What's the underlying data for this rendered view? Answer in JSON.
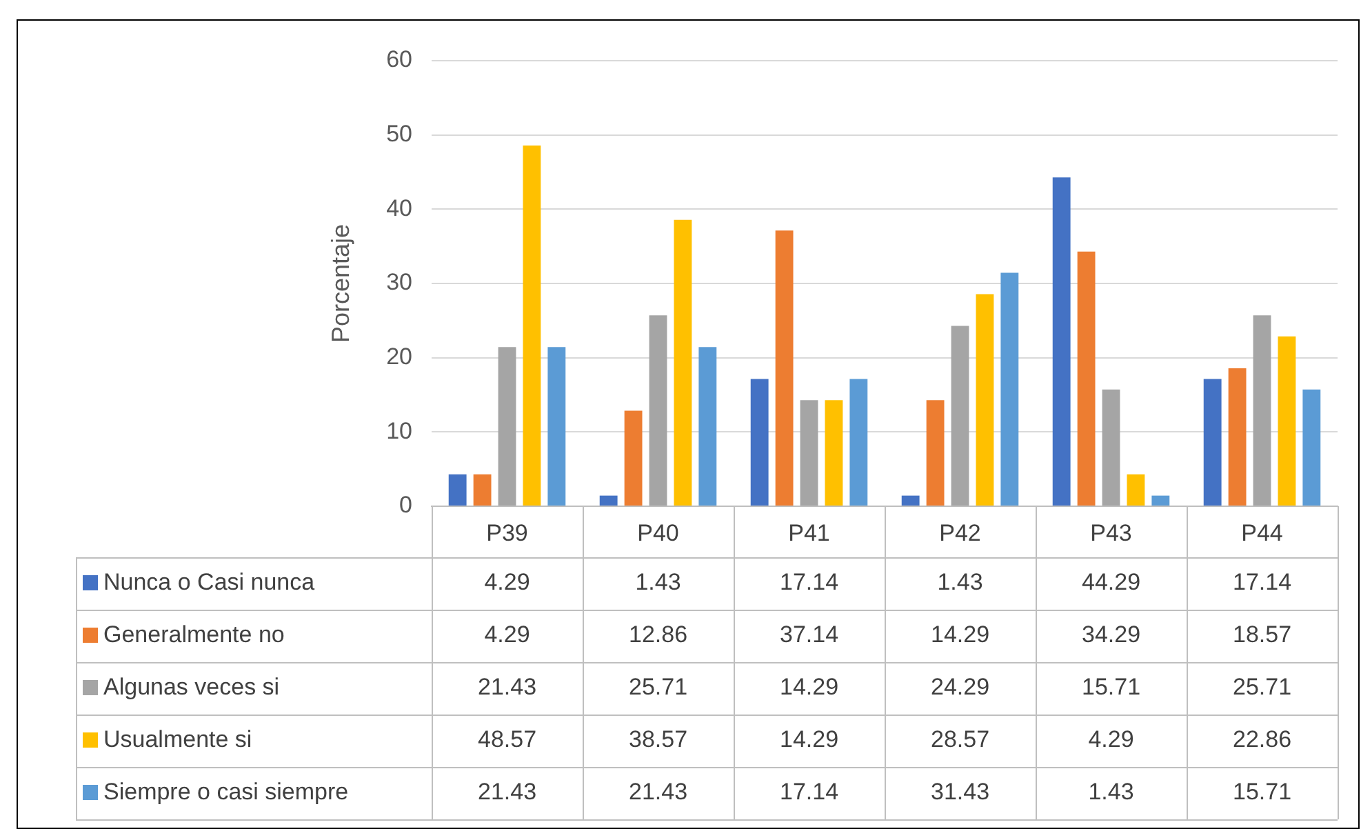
{
  "chart_data": {
    "type": "bar",
    "ylabel": "Porcentaje",
    "categories": [
      "P39",
      "P40",
      "P41",
      "P42",
      "P43",
      "P44"
    ],
    "series": [
      {
        "name": "Nunca o Casi nunca",
        "color": "#4472c4",
        "values": [
          4.29,
          1.43,
          17.14,
          1.43,
          44.29,
          17.14
        ]
      },
      {
        "name": "Generalmente no",
        "color": "#ed7d31",
        "values": [
          4.29,
          12.86,
          37.14,
          14.29,
          34.29,
          18.57
        ]
      },
      {
        "name": "Algunas veces si",
        "color": "#a5a5a5",
        "values": [
          21.43,
          25.71,
          14.29,
          24.29,
          15.71,
          25.71
        ]
      },
      {
        "name": "Usualmente si",
        "color": "#ffc000",
        "values": [
          48.57,
          38.57,
          14.29,
          28.57,
          4.29,
          22.86
        ]
      },
      {
        "name": "Siempre o casi siempre",
        "color": "#5b9bd5",
        "values": [
          21.43,
          21.43,
          17.14,
          31.43,
          1.43,
          15.71
        ]
      }
    ],
    "ylim": [
      0,
      60
    ],
    "yticks": [
      0,
      10,
      20,
      30,
      40,
      50,
      60
    ],
    "grid": "y",
    "legend": "bottom",
    "data_labels": true
  }
}
